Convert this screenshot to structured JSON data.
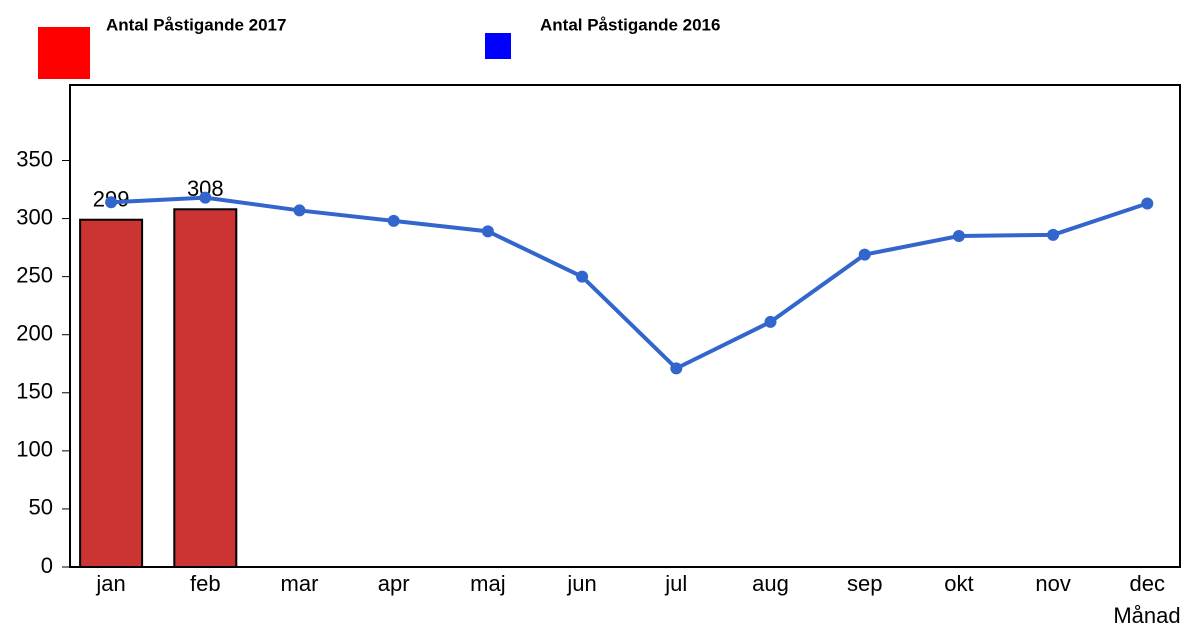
{
  "chart_data": {
    "type": "bar-line",
    "categories": [
      "jan",
      "feb",
      "mar",
      "apr",
      "maj",
      "jun",
      "jul",
      "aug",
      "sep",
      "okt",
      "nov",
      "dec"
    ],
    "x_label": "Månad",
    "series": [
      {
        "name": "Antal Påstigande 2017",
        "type": "bar",
        "color": "#cc3333",
        "legend_color": "#ff0000",
        "values": [
          299,
          308,
          null,
          null,
          null,
          null,
          null,
          null,
          null,
          null,
          null,
          null
        ]
      },
      {
        "name": "Antal Påstigande 2016",
        "type": "line",
        "color": "#3366cc",
        "legend_color": "#0000ff",
        "values": [
          314,
          318,
          307,
          298,
          289,
          250,
          171,
          211,
          269,
          285,
          286,
          313
        ]
      }
    ],
    "ylim": [
      0,
      415
    ],
    "yticks": [
      0,
      50,
      100,
      150,
      200,
      250,
      300,
      350
    ]
  }
}
